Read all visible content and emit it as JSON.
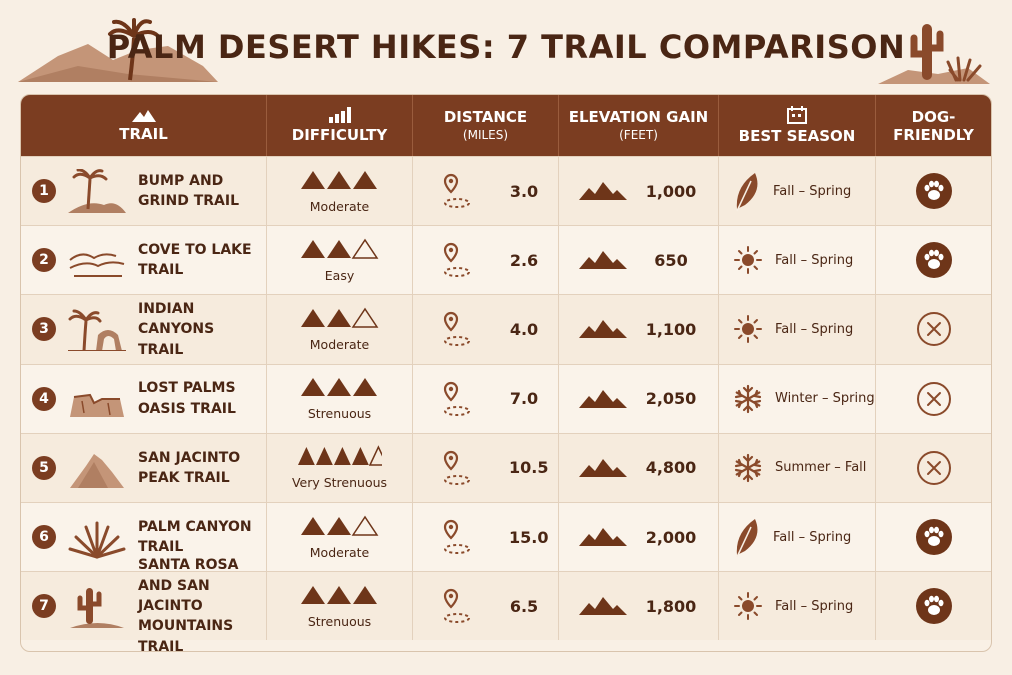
{
  "title": "PALM DESERT HIKES: 7 TRAIL COMPARISON",
  "colors": {
    "accent": "#7b3d21",
    "icon": "#8a4a2b",
    "background": "#f8efe4"
  },
  "headers": {
    "trail": "TRAIL",
    "difficulty": "DIFFICULTY",
    "distance": "DISTANCE",
    "distance_unit": "(MILES)",
    "elevation": "ELEVATION GAIN",
    "elevation_unit": "(FEET)",
    "season": "BEST SEASON",
    "dog": "DOG-\nFRIENDLY"
  },
  "rows": [
    {
      "num": "1",
      "name1": "BUMP AND",
      "name2": "GRIND TRAIL",
      "name3": "",
      "icon": "palm-hill-icon",
      "difficulty_filled": 3,
      "difficulty": "Moderate",
      "distance": "3.0",
      "elevation": "1,000",
      "season_icon": "leaf-icon",
      "season": "Fall – Spring",
      "dog_friendly": true
    },
    {
      "num": "2",
      "name1": "COVE TO LAKE",
      "name2": "TRAIL",
      "name3": "",
      "icon": "dunes-icon",
      "difficulty_filled": 2,
      "difficulty": "Easy",
      "distance": "2.6",
      "elevation": "650",
      "season_icon": "sun-icon",
      "season": "Fall – Spring",
      "dog_friendly": true
    },
    {
      "num": "3",
      "name1": "INDIAN CANYONS",
      "name2": "TRAIL",
      "name3": "",
      "icon": "palm-arch-icon",
      "difficulty_filled": 2,
      "difficulty": "Moderate",
      "distance": "4.0",
      "elevation": "1,100",
      "season_icon": "sun-icon",
      "season": "Fall – Spring",
      "dog_friendly": false
    },
    {
      "num": "4",
      "name1": "LOST PALMS",
      "name2": "OASIS TRAIL",
      "name3": "",
      "icon": "canyon-icon",
      "difficulty_filled": 3,
      "difficulty": "Strenuous",
      "distance": "7.0",
      "elevation": "2,050",
      "season_icon": "snowflake-icon",
      "season": "Winter – Spring",
      "dog_friendly": false
    },
    {
      "num": "5",
      "name1": "SAN JACINTO",
      "name2": "PEAK TRAIL",
      "name3": "",
      "icon": "peak-icon",
      "difficulty_filled": 4,
      "difficulty": "Very Strenuous",
      "distance": "10.5",
      "elevation": "4,800",
      "season_icon": "snowflake-icon",
      "season": "Summer – Fall",
      "dog_friendly": false
    },
    {
      "num": "6",
      "name1": "PALM CANYON",
      "name2": "TRAIL",
      "name3": "",
      "icon": "agave-icon",
      "difficulty_filled": 2,
      "difficulty": "Moderate",
      "distance": "15.0",
      "elevation": "2,000",
      "season_icon": "leaf-icon",
      "season": "Fall – Spring",
      "dog_friendly": true
    },
    {
      "num": "7",
      "name1": "SANTA ROSA",
      "name2": "AND SAN JACINTO",
      "name3": "MOUNTAINS TRAIL",
      "icon": "cactus-icon",
      "difficulty_filled": 3,
      "difficulty": "Strenuous",
      "distance": "6.5",
      "elevation": "1,800",
      "season_icon": "sun-icon",
      "season": "Fall – Spring",
      "dog_friendly": true
    }
  ]
}
